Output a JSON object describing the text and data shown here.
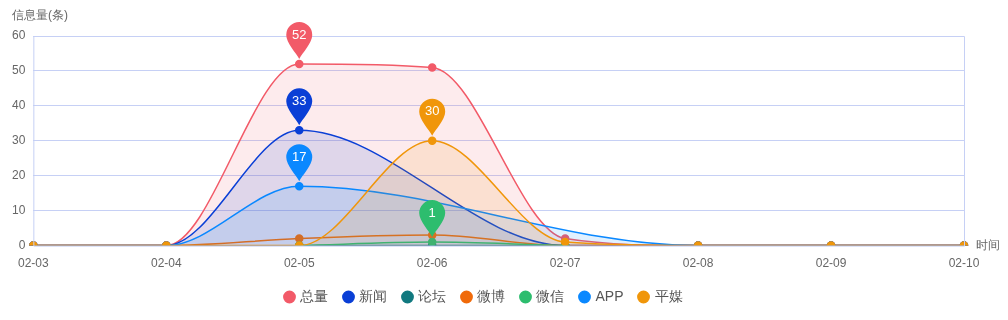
{
  "chart_data": {
    "type": "area",
    "ylabel": "信息量(条)",
    "xlabel": "时间",
    "categories": [
      "02-03",
      "02-04",
      "02-05",
      "02-06",
      "02-07",
      "02-08",
      "02-09",
      "02-10"
    ],
    "series": [
      {
        "name": "总量",
        "color": "#f25a68",
        "values": [
          0,
          0,
          52,
          51,
          2,
          0,
          0,
          0
        ]
      },
      {
        "name": "新闻",
        "color": "#0a3fd6",
        "values": [
          0,
          0,
          33,
          null,
          0,
          0,
          0,
          0
        ]
      },
      {
        "name": "论坛",
        "type": "line",
        "color": "#11797f",
        "values": [
          null,
          null,
          0,
          0,
          0,
          null,
          null,
          null
        ]
      },
      {
        "name": "微博",
        "type": "line",
        "color": "#f06a0a",
        "values": [
          0,
          0,
          2,
          3,
          0,
          0,
          0,
          0
        ]
      },
      {
        "name": "微信",
        "type": "line",
        "color": "#2dbd6e",
        "values": [
          null,
          null,
          0,
          1,
          0,
          null,
          null,
          null
        ]
      },
      {
        "name": "APP",
        "color": "#0a88ff",
        "values": [
          0,
          0,
          17,
          null,
          null,
          0,
          0,
          0
        ]
      },
      {
        "name": "平媒",
        "color": "#f0960a",
        "values": [
          0,
          0,
          0,
          30,
          1,
          0,
          0,
          0
        ]
      }
    ],
    "ylim": [
      0,
      60
    ],
    "yticks": [
      0,
      10,
      20,
      30,
      40,
      50,
      60
    ],
    "grid": "y",
    "legend": "bottom",
    "marker": "circle",
    "line_style": "solid",
    "annotations": [
      {
        "text": "52",
        "x": "02-05",
        "y": 52
      },
      {
        "text": "33",
        "x": "02-05",
        "y": 33
      },
      {
        "text": "17",
        "x": "02-05",
        "y": 17
      },
      {
        "text": "30",
        "x": "02-06",
        "y": 30
      },
      {
        "text": "1",
        "x": "02-06",
        "y": 1
      }
    ]
  }
}
